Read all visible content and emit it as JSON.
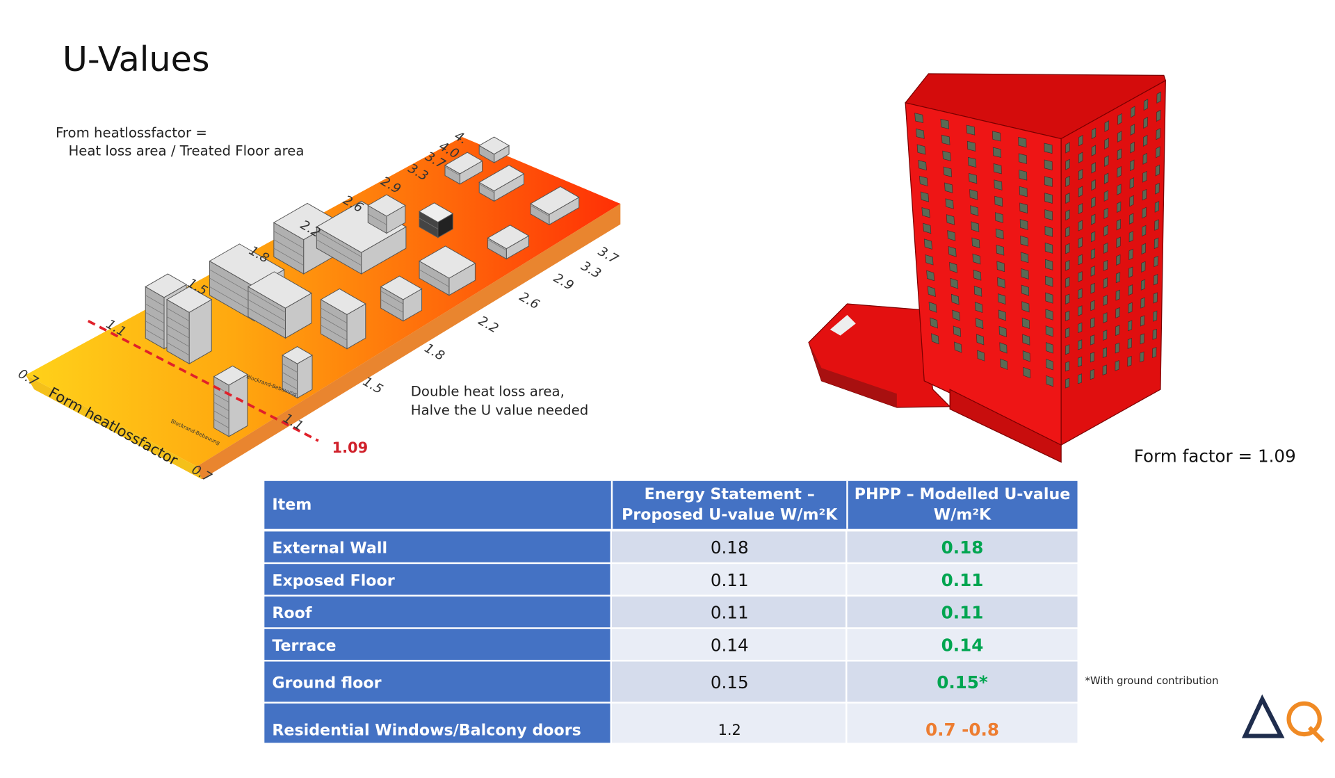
{
  "title": "U-Values",
  "diagram": {
    "formula": [
      "From heatlossfactor =",
      "Heat loss area / Treated Floor area"
    ],
    "axis_label": "Form heatlossfactor",
    "top_scale": [
      "0.7",
      "1.1",
      "1.5",
      "1.8",
      "2.2",
      "2.6",
      "2.9",
      "3.3",
      "3.7",
      "4.0",
      "4."
    ],
    "bottom_scale": [
      "0.7",
      "1.1",
      "1.5",
      "1.8",
      "2.2",
      "2.6",
      "2.9",
      "3.3",
      "3.7"
    ],
    "marker": "1.09",
    "note": [
      "Double heat loss area,",
      "Halve the U value needed"
    ],
    "block_labels": [
      "Blockrand-Bebauung",
      "Blockrand-Bebauung"
    ]
  },
  "form_factor": "Form factor = 1.09",
  "table": {
    "header": [
      [
        "Item"
      ],
      [
        "Energy Statement –",
        "Proposed U-value W/m²K"
      ],
      [
        "PHPP – Modelled U-value",
        "W/m²K"
      ]
    ],
    "rows": [
      [
        "External Wall",
        "0.18",
        "0.18"
      ],
      [
        "Exposed Floor",
        "0.11",
        "0.11"
      ],
      [
        "Roof",
        "0.11",
        "0.11"
      ],
      [
        "Terrace",
        "0.14",
        "0.14"
      ],
      [
        "Ground floor",
        "0.15",
        "0.15*"
      ],
      [
        "Residential Windows/Balcony doors",
        "1.2",
        "0.7 -0.8"
      ]
    ]
  },
  "footnote": "*With ground contribution"
}
